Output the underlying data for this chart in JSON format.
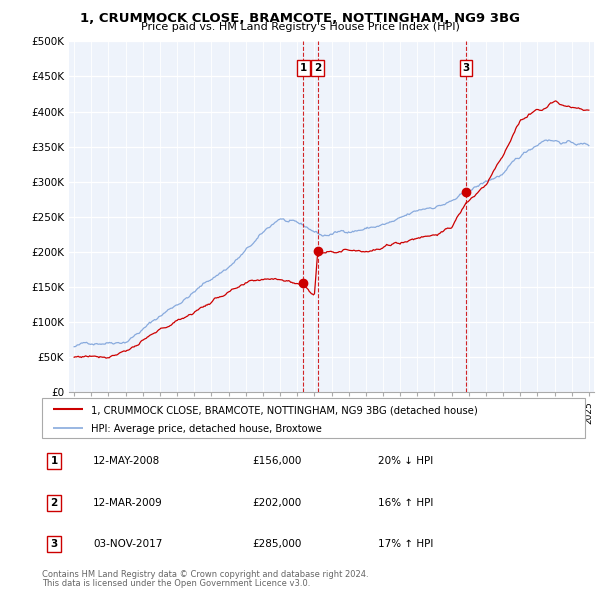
{
  "title": "1, CRUMMOCK CLOSE, BRAMCOTE, NOTTINGHAM, NG9 3BG",
  "subtitle": "Price paid vs. HM Land Registry's House Price Index (HPI)",
  "legend_property": "1, CRUMMOCK CLOSE, BRAMCOTE, NOTTINGHAM, NG9 3BG (detached house)",
  "legend_hpi": "HPI: Average price, detached house, Broxtowe",
  "footer1": "Contains HM Land Registry data © Crown copyright and database right 2024.",
  "footer2": "This data is licensed under the Open Government Licence v3.0.",
  "ylim": [
    0,
    500000
  ],
  "yticks": [
    0,
    50000,
    100000,
    150000,
    200000,
    250000,
    300000,
    350000,
    400000,
    450000,
    500000
  ],
  "ytick_labels": [
    "£0",
    "£50K",
    "£100K",
    "£150K",
    "£200K",
    "£250K",
    "£300K",
    "£350K",
    "£400K",
    "£450K",
    "£500K"
  ],
  "sales": [
    {
      "num": 1,
      "year": 2008.36,
      "price": 156000,
      "date": "12-MAY-2008",
      "label": "20% ↓ HPI"
    },
    {
      "num": 2,
      "year": 2009.19,
      "price": 202000,
      "date": "12-MAR-2009",
      "label": "16% ↑ HPI"
    },
    {
      "num": 3,
      "year": 2017.84,
      "price": 285000,
      "date": "03-NOV-2017",
      "label": "17% ↑ HPI"
    }
  ],
  "property_color": "#cc0000",
  "hpi_color": "#88aadd",
  "chart_bg": "#eef3fb",
  "vline_color": "#cc0000",
  "grid_color": "#ffffff",
  "xlim": [
    1994.7,
    2025.3
  ]
}
